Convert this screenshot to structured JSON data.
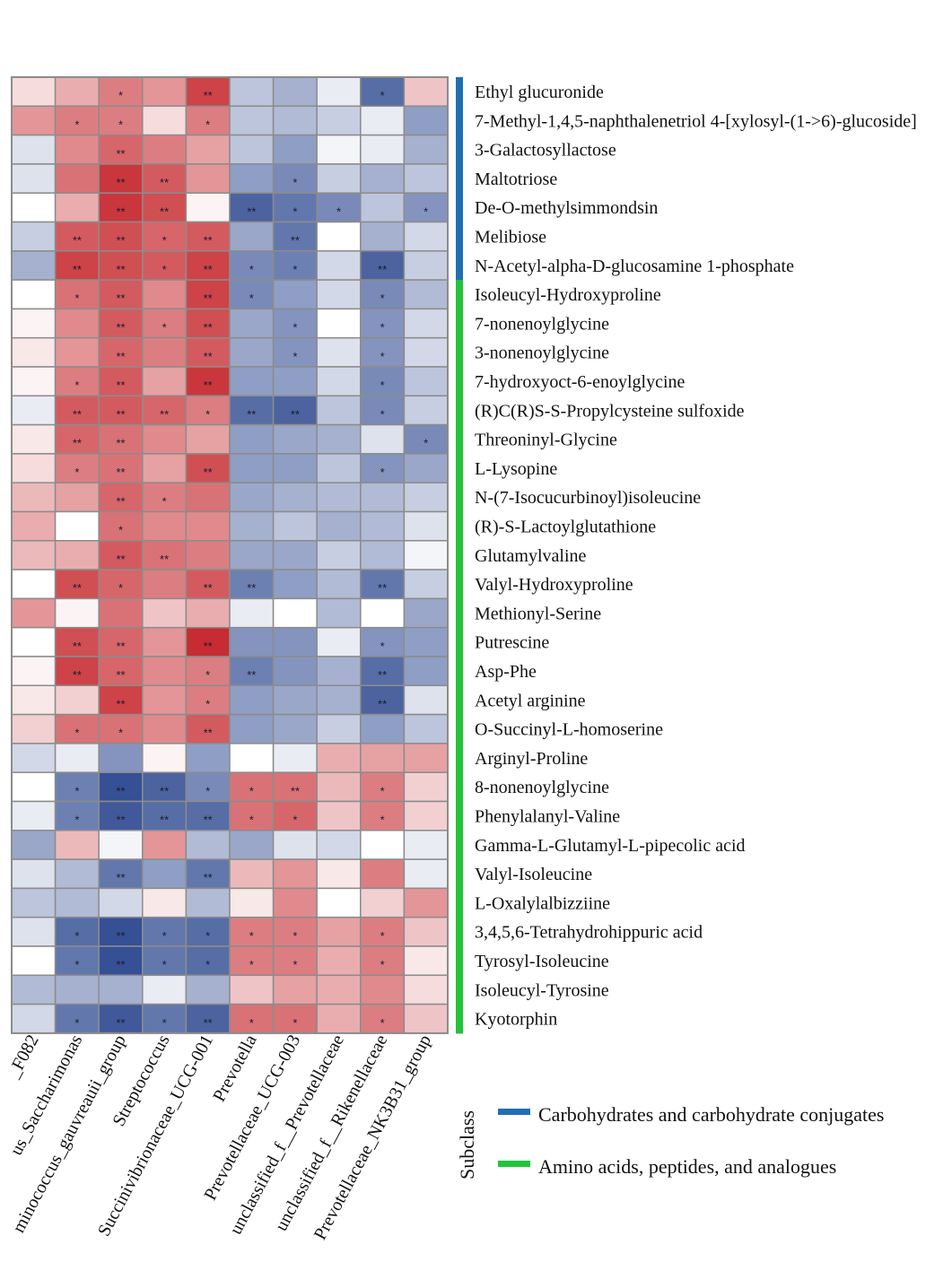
{
  "chart_data": {
    "type": "heatmap",
    "title": "",
    "legend_title": "Subclass",
    "color_scale": {
      "low": "#1f3c88",
      "mid": "#ffffff",
      "high": "#c0141a"
    },
    "x_categories": [
      "_F082",
      "us_Saccharimonas",
      "minococcus_gauvreauii_group",
      "Streptococcus",
      "Succinivibrionaceae_UCG-001",
      "Prevotella",
      "Prevotellaceae_UCG-003",
      "unclassified_f__Prevotellaceae",
      "unclassified_f__Rikenellaceae",
      "Prevotellaceae_NK3B31_group"
    ],
    "legend": [
      {
        "label": "Carbohydrates and carbohydrate conjugates",
        "color": "#1f6fb5"
      },
      {
        "label": "Amino acids, peptides, and analogues",
        "color": "#22c43a"
      }
    ],
    "rows": [
      {
        "name": "Ethyl glucuronide",
        "subclass": 0,
        "values": [
          0.15,
          0.35,
          0.55,
          0.45,
          0.8,
          -0.3,
          -0.4,
          -0.1,
          -0.75,
          0.25
        ],
        "sig": [
          "",
          "",
          "*",
          "",
          "**",
          "",
          "",
          "",
          "*",
          ""
        ]
      },
      {
        "name": "7-Methyl-1,4,5-naphthalenetriol 4-[xylosyl-(1->6)-glucoside]",
        "subclass": 0,
        "values": [
          0.45,
          0.55,
          0.55,
          0.15,
          0.55,
          -0.3,
          -0.35,
          -0.25,
          -0.1,
          -0.5
        ],
        "sig": [
          "",
          "*",
          "*",
          "",
          "*",
          "",
          "",
          "",
          "",
          ""
        ]
      },
      {
        "name": "3-Galactosyllactose",
        "subclass": 0,
        "values": [
          -0.15,
          0.5,
          0.65,
          0.55,
          0.4,
          -0.3,
          -0.5,
          -0.05,
          -0.1,
          -0.4
        ],
        "sig": [
          "",
          "",
          "**",
          "",
          "",
          "",
          "",
          "",
          "",
          ""
        ]
      },
      {
        "name": "Maltotriose",
        "subclass": 0,
        "values": [
          -0.15,
          0.6,
          0.85,
          0.7,
          0.45,
          -0.5,
          -0.6,
          -0.25,
          -0.4,
          -0.3
        ],
        "sig": [
          "",
          "",
          "**",
          "**",
          "",
          "",
          "*",
          "",
          "",
          ""
        ]
      },
      {
        "name": "De-O-methylsimmondsin",
        "subclass": 0,
        "values": [
          0.0,
          0.35,
          0.85,
          0.75,
          0.05,
          -0.8,
          -0.7,
          -0.6,
          -0.3,
          -0.55
        ],
        "sig": [
          "",
          "",
          "**",
          "**",
          "",
          "**",
          "*",
          "*",
          "",
          "*"
        ]
      },
      {
        "name": "Melibiose",
        "subclass": 0,
        "values": [
          -0.25,
          0.7,
          0.75,
          0.65,
          0.7,
          -0.45,
          -0.7,
          0.0,
          -0.4,
          -0.2
        ],
        "sig": [
          "",
          "**",
          "**",
          "*",
          "**",
          "",
          "**",
          "",
          "",
          ""
        ]
      },
      {
        "name": "N-Acetyl-alpha-D-glucosamine 1-phosphate",
        "subclass": 0,
        "values": [
          -0.4,
          0.8,
          0.75,
          0.7,
          0.8,
          -0.6,
          -0.65,
          -0.2,
          -0.8,
          -0.25
        ],
        "sig": [
          "",
          "**",
          "**",
          "*",
          "**",
          "*",
          "*",
          "",
          "**",
          ""
        ]
      },
      {
        "name": "Isoleucyl-Hydroxyproline",
        "subclass": 1,
        "values": [
          0.0,
          0.6,
          0.7,
          0.5,
          0.8,
          -0.6,
          -0.5,
          -0.2,
          -0.6,
          -0.35
        ],
        "sig": [
          "",
          "*",
          "**",
          "",
          "**",
          "*",
          "",
          "",
          "*",
          ""
        ]
      },
      {
        "name": "7-nonenoylglycine",
        "subclass": 1,
        "values": [
          0.05,
          0.5,
          0.7,
          0.55,
          0.75,
          -0.45,
          -0.55,
          0.0,
          -0.55,
          -0.2
        ],
        "sig": [
          "",
          "",
          "**",
          "*",
          "**",
          "",
          "*",
          "",
          "*",
          ""
        ]
      },
      {
        "name": "3-nonenoylglycine",
        "subclass": 1,
        "values": [
          0.1,
          0.45,
          0.65,
          0.55,
          0.7,
          -0.45,
          -0.55,
          -0.15,
          -0.55,
          -0.2
        ],
        "sig": [
          "",
          "",
          "**",
          "",
          "**",
          "",
          "*",
          "",
          "*",
          ""
        ]
      },
      {
        "name": "7-hydroxyoct-6-enoylglycine",
        "subclass": 1,
        "values": [
          0.05,
          0.55,
          0.7,
          0.4,
          0.85,
          -0.5,
          -0.5,
          -0.2,
          -0.6,
          -0.3
        ],
        "sig": [
          "",
          "*",
          "**",
          "",
          "**",
          "",
          "",
          "",
          "*",
          ""
        ]
      },
      {
        "name": "(R)C(R)S-S-Propylcysteine sulfoxide",
        "subclass": 1,
        "values": [
          -0.1,
          0.7,
          0.7,
          0.65,
          0.55,
          -0.75,
          -0.8,
          -0.3,
          -0.6,
          -0.25
        ],
        "sig": [
          "",
          "**",
          "**",
          "**",
          "*",
          "**",
          "**",
          "",
          "*",
          ""
        ]
      },
      {
        "name": "Threoninyl-Glycine",
        "subclass": 1,
        "values": [
          0.1,
          0.65,
          0.6,
          0.5,
          0.4,
          -0.5,
          -0.45,
          -0.4,
          -0.15,
          -0.6
        ],
        "sig": [
          "",
          "**",
          "**",
          "",
          "",
          "",
          "",
          "",
          "",
          "*"
        ]
      },
      {
        "name": "L-Lysopine",
        "subclass": 1,
        "values": [
          0.15,
          0.55,
          0.6,
          0.4,
          0.75,
          -0.5,
          -0.5,
          -0.3,
          -0.55,
          -0.45
        ],
        "sig": [
          "",
          "*",
          "**",
          "",
          "**",
          "",
          "",
          "",
          "*",
          ""
        ]
      },
      {
        "name": "N-(7-Isocucurbinoyl)isoleucine",
        "subclass": 1,
        "values": [
          0.3,
          0.4,
          0.65,
          0.55,
          0.6,
          -0.45,
          -0.4,
          -0.35,
          -0.35,
          -0.25
        ],
        "sig": [
          "",
          "",
          "**",
          "*",
          "",
          "",
          "",
          "",
          "",
          ""
        ]
      },
      {
        "name": "(R)-S-Lactoylglutathione",
        "subclass": 1,
        "values": [
          0.35,
          0.0,
          0.6,
          0.5,
          0.5,
          -0.4,
          -0.3,
          -0.4,
          -0.35,
          -0.15
        ],
        "sig": [
          "",
          "",
          "*",
          "",
          "",
          "",
          "",
          "",
          "",
          ""
        ]
      },
      {
        "name": "Glutamylvaline",
        "subclass": 1,
        "values": [
          0.3,
          0.35,
          0.7,
          0.6,
          0.55,
          -0.45,
          -0.45,
          -0.25,
          -0.35,
          -0.05
        ],
        "sig": [
          "",
          "",
          "**",
          "**",
          "",
          "",
          "",
          "",
          "",
          ""
        ]
      },
      {
        "name": "Valyl-Hydroxyproline",
        "subclass": 1,
        "values": [
          0.0,
          0.75,
          0.65,
          0.55,
          0.7,
          -0.65,
          -0.5,
          -0.35,
          -0.7,
          -0.25
        ],
        "sig": [
          "",
          "**",
          "*",
          "",
          "**",
          "**",
          "",
          "",
          "**",
          ""
        ]
      },
      {
        "name": "Methionyl-Serine",
        "subclass": 1,
        "values": [
          0.45,
          0.05,
          0.6,
          0.25,
          0.35,
          -0.1,
          0.0,
          -0.35,
          0.0,
          -0.45
        ],
        "sig": [
          "",
          "",
          "",
          "",
          "",
          "",
          "",
          "",
          "",
          ""
        ]
      },
      {
        "name": "Putrescine",
        "subclass": 1,
        "values": [
          0.0,
          0.75,
          0.65,
          0.45,
          0.9,
          -0.55,
          -0.55,
          -0.1,
          -0.55,
          -0.5
        ],
        "sig": [
          "",
          "**",
          "**",
          "",
          "**",
          "",
          "",
          "",
          "*",
          ""
        ]
      },
      {
        "name": "Asp-Phe",
        "subclass": 1,
        "values": [
          0.05,
          0.8,
          0.65,
          0.5,
          0.55,
          -0.65,
          -0.55,
          -0.4,
          -0.75,
          -0.5
        ],
        "sig": [
          "",
          "**",
          "**",
          "",
          "*",
          "**",
          "",
          "",
          "**",
          ""
        ]
      },
      {
        "name": "Acetyl arginine",
        "subclass": 1,
        "values": [
          0.1,
          0.2,
          0.8,
          0.45,
          0.55,
          -0.5,
          -0.45,
          -0.4,
          -0.8,
          -0.15
        ],
        "sig": [
          "",
          "",
          "**",
          "",
          "*",
          "",
          "",
          "",
          "**",
          ""
        ]
      },
      {
        "name": "O-Succinyl-L-homoserine",
        "subclass": 1,
        "values": [
          0.2,
          0.6,
          0.6,
          0.5,
          0.7,
          -0.5,
          -0.45,
          -0.25,
          -0.5,
          -0.3
        ],
        "sig": [
          "",
          "*",
          "*",
          "",
          "**",
          "",
          "",
          "",
          "",
          ""
        ]
      },
      {
        "name": "Arginyl-Proline",
        "subclass": 1,
        "values": [
          -0.2,
          -0.1,
          -0.55,
          0.05,
          -0.5,
          0.0,
          -0.1,
          0.35,
          0.4,
          0.4
        ],
        "sig": [
          "",
          "",
          "",
          "",
          "",
          "",
          "",
          "",
          "",
          ""
        ]
      },
      {
        "name": "8-nonenoylglycine",
        "subclass": 1,
        "values": [
          0.0,
          -0.65,
          -0.9,
          -0.8,
          -0.6,
          0.6,
          0.6,
          0.3,
          0.55,
          0.2
        ],
        "sig": [
          "",
          "*",
          "**",
          "**",
          "*",
          "*",
          "**",
          "",
          "*",
          ""
        ]
      },
      {
        "name": "Phenylalanyl-Valine",
        "subclass": 1,
        "values": [
          -0.1,
          -0.65,
          -0.85,
          -0.75,
          -0.75,
          0.6,
          0.65,
          0.25,
          0.55,
          0.2
        ],
        "sig": [
          "",
          "*",
          "**",
          "**",
          "**",
          "*",
          "*",
          "",
          "*",
          ""
        ]
      },
      {
        "name": "Gamma-L-Glutamyl-L-pipecolic acid",
        "subclass": 1,
        "values": [
          -0.45,
          0.3,
          -0.05,
          0.45,
          -0.35,
          -0.45,
          -0.15,
          -0.2,
          0.0,
          -0.1
        ],
        "sig": [
          "",
          "",
          "",
          "",
          "",
          "",
          "",
          "",
          "",
          ""
        ]
      },
      {
        "name": "Valyl-Isoleucine",
        "subclass": 1,
        "values": [
          -0.15,
          -0.35,
          -0.7,
          -0.5,
          -0.7,
          0.3,
          0.45,
          0.1,
          0.55,
          -0.1
        ],
        "sig": [
          "",
          "",
          "**",
          "",
          "**",
          "",
          "",
          "",
          "",
          ""
        ]
      },
      {
        "name": "L-Oxalylalbizziine",
        "subclass": 1,
        "values": [
          -0.3,
          -0.35,
          -0.2,
          0.1,
          -0.35,
          0.1,
          0.5,
          0.0,
          0.2,
          0.45
        ],
        "sig": [
          "",
          "",
          "",
          "",
          "",
          "",
          "",
          "",
          "",
          ""
        ]
      },
      {
        "name": "3,4,5,6-Tetrahydrohippuric acid",
        "subclass": 1,
        "values": [
          -0.15,
          -0.75,
          -0.9,
          -0.7,
          -0.75,
          0.55,
          0.55,
          0.4,
          0.55,
          0.25
        ],
        "sig": [
          "",
          "*",
          "**",
          "*",
          "*",
          "*",
          "*",
          "",
          "*",
          ""
        ]
      },
      {
        "name": "Tyrosyl-Isoleucine",
        "subclass": 1,
        "values": [
          0.0,
          -0.7,
          -0.9,
          -0.7,
          -0.75,
          0.55,
          0.55,
          0.35,
          0.55,
          0.1
        ],
        "sig": [
          "",
          "*",
          "**",
          "*",
          "*",
          "*",
          "*",
          "",
          "*",
          ""
        ]
      },
      {
        "name": "Isoleucyl-Tyrosine",
        "subclass": 1,
        "values": [
          -0.35,
          -0.4,
          -0.4,
          -0.1,
          -0.4,
          0.25,
          0.4,
          0.35,
          0.5,
          0.15
        ],
        "sig": [
          "",
          "",
          "",
          "",
          "",
          "",
          "",
          "",
          "",
          ""
        ]
      },
      {
        "name": "Kyotorphin",
        "subclass": 1,
        "values": [
          -0.2,
          -0.7,
          -0.85,
          -0.7,
          -0.8,
          0.6,
          0.6,
          0.35,
          0.55,
          0.25
        ],
        "sig": [
          "",
          "*",
          "**",
          "*",
          "**",
          "*",
          "*",
          "",
          "*",
          ""
        ]
      }
    ]
  }
}
